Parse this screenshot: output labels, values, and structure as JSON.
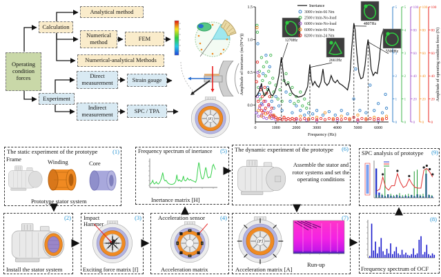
{
  "colors": {
    "accent_number": "#1d8fd1",
    "calc_box_fill": "#faeccb",
    "root_box_fill": "#c9d8a8",
    "experiment_box_fill": "#d9eaf3",
    "winding_orange": "#f08a22",
    "core_lavender": "#b4b4e0"
  },
  "flowchart": {
    "root": "Operating condition forces",
    "calculation": "Calculation",
    "analytical": "Analytical method",
    "numerical": "Numerical method",
    "fem": "FEM",
    "numerical_analytical": "Numerical-analytical Methods",
    "experiment": "Experiment",
    "direct": "Direct measurement",
    "strain_gauge": "Strain gauge",
    "indirect": "Indirect measurement",
    "spc_tpa": "SPC / TPA",
    "motor_center_label": "[F]"
  },
  "process": {
    "box1": {
      "num": "(1)",
      "title": "The static experiment of the prototype",
      "frame": "Frame",
      "winding": "Winding",
      "core": "Core",
      "caption": "Prototype stator system"
    },
    "box2": {
      "num": "(2)",
      "caption": "Install the stator system"
    },
    "box3": {
      "num": "(3)",
      "label": "Impact Hammer",
      "caption": "Exciting force matrix [f]"
    },
    "box4": {
      "num": "(4)",
      "title": "Acceleration sensor",
      "caption": "Acceleration matrix"
    },
    "box5": {
      "num": "(5)",
      "title": "Frequency spectrum of inertance",
      "caption": "Inertance matrix [H]"
    },
    "box6": {
      "num": "(6)",
      "title": "The dynamic experiment of the prototype",
      "text": "Assemble the stator and rotor systems and set the operating conditions"
    },
    "box7": {
      "num": "(7)",
      "caption": "Acceleration matrix [A]",
      "runup": "Run-up",
      "center_label": "[F]"
    },
    "box8": {
      "num": "(8)",
      "caption": "Frequency spectrum of OCF"
    },
    "box9": {
      "num": "(9)",
      "title": "SPC analysis of prototype"
    }
  },
  "chart_data": {
    "type": "line+scatter",
    "title": "",
    "xlabel": "Frequency (Hz)",
    "ylabel": "Amplitude of inertance (m/(N*s²))",
    "ylabel_right": "Amplitude of operating condition force (N)",
    "xlim": [
      0,
      6500
    ],
    "xticks": [
      0,
      1000,
      2000,
      3000,
      4000,
      5000,
      6000
    ],
    "yticks_left": [
      "0.0",
      "0.5",
      "1.0",
      "1.5"
    ],
    "y_left_range": [
      -0.26,
      1.5
    ],
    "grid": false,
    "legend_position": "top-inside",
    "right_axes": [
      {
        "color": "#2f7ec7",
        "max": 5,
        "ticks": [
          0,
          1,
          2,
          3,
          4,
          5
        ]
      },
      {
        "color": "#3cb44a",
        "max": 5,
        "ticks": [
          0,
          1,
          2,
          3,
          4,
          5
        ]
      },
      {
        "color": "#a050c8",
        "max": 100,
        "ticks": [
          0,
          20,
          40,
          60,
          80,
          100
        ]
      },
      {
        "color": "#f59120",
        "max": 100,
        "ticks": [
          0,
          20,
          40,
          60,
          80,
          100
        ]
      },
      {
        "color": "#e8251f",
        "max": 100,
        "ticks": [
          0,
          20,
          40,
          60,
          80,
          100
        ]
      }
    ],
    "annotations": [
      {
        "label": "1270Hz",
        "freq": 1270,
        "peak": 0.73
      },
      {
        "label": "2661Hz",
        "freq": 2661,
        "peak": 0.62
      },
      {
        "label": "4807Hz",
        "freq": 4807,
        "peak": 1.25
      },
      {
        "label": "5500Hz",
        "freq": 5500,
        "peak": 1.0
      }
    ],
    "series": [
      {
        "name": "Inertance",
        "type": "line",
        "color": "#111111",
        "axis": "left",
        "points": [
          [
            0,
            0.12
          ],
          [
            100,
            0.16
          ],
          [
            200,
            0.22
          ],
          [
            300,
            0.33
          ],
          [
            350,
            0.22
          ],
          [
            450,
            0.14
          ],
          [
            550,
            0.18
          ],
          [
            650,
            0.25
          ],
          [
            750,
            0.16
          ],
          [
            850,
            0.14
          ],
          [
            950,
            0.2
          ],
          [
            1050,
            0.3
          ],
          [
            1150,
            0.45
          ],
          [
            1270,
            0.73
          ],
          [
            1320,
            0.6
          ],
          [
            1400,
            0.38
          ],
          [
            1500,
            0.3
          ],
          [
            1600,
            0.33
          ],
          [
            1700,
            0.25
          ],
          [
            1800,
            0.18
          ],
          [
            1950,
            0.14
          ],
          [
            2100,
            0.12
          ],
          [
            2250,
            0.13
          ],
          [
            2400,
            0.16
          ],
          [
            2550,
            0.28
          ],
          [
            2661,
            0.62
          ],
          [
            2720,
            0.4
          ],
          [
            2800,
            0.3
          ],
          [
            2900,
            0.36
          ],
          [
            3000,
            0.3
          ],
          [
            3100,
            0.27
          ],
          [
            3200,
            0.35
          ],
          [
            3300,
            0.55
          ],
          [
            3380,
            0.35
          ],
          [
            3500,
            0.3
          ],
          [
            3600,
            0.34
          ],
          [
            3700,
            0.45
          ],
          [
            3800,
            0.37
          ],
          [
            3900,
            0.34
          ],
          [
            4000,
            0.38
          ],
          [
            4100,
            0.33
          ],
          [
            4250,
            0.3
          ],
          [
            4400,
            0.26
          ],
          [
            4500,
            0.23
          ],
          [
            4600,
            0.38
          ],
          [
            4700,
            0.85
          ],
          [
            4807,
            1.25
          ],
          [
            4870,
            1.15
          ],
          [
            4950,
            0.8
          ],
          [
            5050,
            0.5
          ],
          [
            5150,
            0.4
          ],
          [
            5250,
            0.42
          ],
          [
            5350,
            0.6
          ],
          [
            5450,
            0.9
          ],
          [
            5500,
            1.0
          ],
          [
            5570,
            0.85
          ],
          [
            5650,
            0.55
          ],
          [
            5750,
            0.45
          ],
          [
            5850,
            0.5
          ],
          [
            5950,
            0.48
          ],
          [
            6050,
            0.7
          ],
          [
            6150,
            1.05
          ],
          [
            6250,
            1.15
          ],
          [
            6350,
            1.0
          ],
          [
            6450,
            0.88
          ]
        ]
      },
      {
        "name": "3000 r/min-66 Nm",
        "type": "scatter",
        "color": "#2f7ec7",
        "axis_max": 5,
        "points": [
          [
            60,
            0.4
          ],
          [
            120,
            3.4
          ],
          [
            200,
            1.2
          ],
          [
            300,
            0.8
          ],
          [
            380,
            2.1
          ],
          [
            450,
            0.5
          ],
          [
            520,
            2.9
          ],
          [
            600,
            1.5
          ],
          [
            700,
            2.4
          ],
          [
            800,
            0.9
          ],
          [
            900,
            0.6
          ],
          [
            1000,
            1.1
          ],
          [
            1150,
            0.7
          ],
          [
            1300,
            0.5
          ],
          [
            1500,
            1.3
          ],
          [
            1700,
            0.9
          ],
          [
            1800,
            0.4
          ],
          [
            2000,
            0.7
          ],
          [
            2200,
            0.5
          ],
          [
            2400,
            0.3
          ],
          [
            2600,
            0.4
          ],
          [
            2800,
            0.35
          ],
          [
            3000,
            0.5
          ],
          [
            3300,
            0.3
          ],
          [
            3600,
            0.45
          ],
          [
            3900,
            0.3
          ],
          [
            4200,
            0.5
          ],
          [
            4500,
            0.35
          ],
          [
            4800,
            1.0
          ],
          [
            4900,
            2.3
          ],
          [
            5100,
            0.5
          ],
          [
            5400,
            0.4
          ],
          [
            5600,
            1.6
          ],
          [
            5800,
            0.5
          ],
          [
            6000,
            0.8
          ],
          [
            6200,
            0.4
          ],
          [
            6350,
            1.2
          ],
          [
            6400,
            0.6
          ]
        ]
      },
      {
        "name": "2500 r/min-No-load",
        "type": "scatter",
        "color": "#3cb44a",
        "axis_max": 5,
        "points": [
          [
            80,
            4.2
          ],
          [
            100,
            3.9
          ],
          [
            150,
            1.5
          ],
          [
            200,
            2.2
          ],
          [
            250,
            1.0
          ],
          [
            300,
            2.8
          ],
          [
            350,
            1.8
          ],
          [
            400,
            2.4
          ],
          [
            450,
            1.2
          ],
          [
            500,
            2.0
          ],
          [
            550,
            2.6
          ],
          [
            600,
            1.4
          ],
          [
            650,
            2.2
          ],
          [
            700,
            1.7
          ],
          [
            750,
            2.9
          ],
          [
            800,
            1.1
          ],
          [
            850,
            1.9
          ],
          [
            900,
            1.3
          ],
          [
            1000,
            1.6
          ],
          [
            1100,
            1.0
          ],
          [
            1200,
            1.4
          ],
          [
            1300,
            0.9
          ],
          [
            1400,
            1.8
          ],
          [
            1500,
            2.1
          ],
          [
            1600,
            1.7
          ],
          [
            1700,
            1.2
          ],
          [
            1800,
            1.5
          ],
          [
            1900,
            0.8
          ],
          [
            2000,
            1.1
          ],
          [
            2100,
            0.9
          ],
          [
            2200,
            1.3
          ],
          [
            2300,
            0.7
          ],
          [
            2400,
            1.0
          ],
          [
            2500,
            0.6
          ],
          [
            2600,
            0.8
          ]
        ]
      },
      {
        "name": "6000 r/min-No-load",
        "type": "scatter",
        "color": "#a050c8",
        "axis_max": 100,
        "points": [
          [
            50,
            8
          ],
          [
            100,
            22
          ],
          [
            120,
            43
          ],
          [
            150,
            5
          ],
          [
            200,
            12
          ],
          [
            250,
            30
          ],
          [
            300,
            6
          ],
          [
            350,
            15
          ],
          [
            400,
            4
          ],
          [
            450,
            10
          ],
          [
            500,
            18
          ],
          [
            550,
            3
          ],
          [
            600,
            8
          ],
          [
            650,
            14
          ],
          [
            700,
            5
          ],
          [
            750,
            9
          ],
          [
            800,
            3
          ],
          [
            850,
            6
          ],
          [
            900,
            4
          ],
          [
            1000,
            2
          ],
          [
            1200,
            3
          ],
          [
            1500,
            2
          ],
          [
            2000,
            2
          ],
          [
            2500,
            1.5
          ],
          [
            3000,
            1
          ],
          [
            4000,
            1.5
          ],
          [
            5000,
            1
          ],
          [
            6000,
            1.5
          ]
        ]
      },
      {
        "name": "6000 r/min-66 Nm",
        "type": "scatter",
        "color": "#f59120",
        "axis_max": 100,
        "points": [
          [
            80,
            82
          ],
          [
            150,
            10
          ],
          [
            300,
            5
          ],
          [
            500,
            7
          ],
          [
            700,
            4
          ],
          [
            900,
            6
          ],
          [
            1100,
            3
          ],
          [
            1400,
            4
          ],
          [
            1800,
            3
          ],
          [
            2200,
            5
          ],
          [
            2600,
            3
          ],
          [
            3000,
            4
          ],
          [
            3400,
            8
          ],
          [
            3800,
            3
          ],
          [
            4200,
            5
          ],
          [
            4600,
            3
          ],
          [
            5000,
            6
          ],
          [
            5400,
            3
          ],
          [
            5800,
            4
          ],
          [
            6200,
            3
          ],
          [
            6400,
            5
          ]
        ]
      },
      {
        "name": "8200 r/min-24 Nm",
        "type": "scatter",
        "color": "#e8251f",
        "axis_max": 100,
        "points": [
          [
            60,
            35
          ],
          [
            100,
            52
          ],
          [
            140,
            18
          ],
          [
            180,
            40
          ],
          [
            220,
            14
          ],
          [
            260,
            28
          ],
          [
            300,
            10
          ],
          [
            340,
            22
          ],
          [
            380,
            8
          ],
          [
            420,
            18
          ],
          [
            460,
            30
          ],
          [
            500,
            12
          ],
          [
            550,
            25
          ],
          [
            600,
            8
          ],
          [
            650,
            15
          ],
          [
            700,
            22
          ],
          [
            750,
            6
          ],
          [
            800,
            12
          ],
          [
            900,
            5
          ],
          [
            1000,
            4
          ],
          [
            1100,
            2
          ],
          [
            1200,
            3
          ],
          [
            1300,
            2
          ],
          [
            1400,
            4
          ],
          [
            1500,
            2
          ],
          [
            1600,
            3
          ],
          [
            1700,
            2
          ],
          [
            1800,
            3
          ],
          [
            1900,
            2
          ],
          [
            2000,
            3
          ],
          [
            2200,
            2
          ],
          [
            2400,
            3
          ],
          [
            2600,
            2
          ],
          [
            2800,
            3
          ],
          [
            3000,
            2
          ],
          [
            3200,
            3
          ],
          [
            3400,
            2
          ],
          [
            3600,
            3
          ],
          [
            3800,
            2
          ],
          [
            4000,
            3
          ],
          [
            4200,
            2
          ],
          [
            4400,
            3
          ],
          [
            4600,
            2
          ],
          [
            4800,
            4
          ],
          [
            5000,
            2
          ],
          [
            5200,
            3
          ],
          [
            5400,
            2
          ],
          [
            5600,
            3
          ],
          [
            5800,
            2
          ],
          [
            6000,
            3
          ],
          [
            6200,
            2
          ],
          [
            6400,
            3
          ]
        ]
      }
    ]
  },
  "mini_charts": {
    "ocf_spectrum": {
      "type": "bar",
      "color": "#1a1acc",
      "values": [
        5,
        95,
        20,
        45,
        12,
        30,
        55,
        18,
        8,
        25,
        12,
        40,
        10,
        18,
        30,
        12,
        8,
        22,
        9,
        14,
        8,
        6,
        10,
        26,
        8,
        12,
        50,
        60,
        9,
        16,
        36,
        10,
        6,
        12,
        8
      ]
    },
    "spc": {
      "blue": [
        85,
        15,
        8,
        5,
        10,
        6,
        4,
        8,
        5,
        3,
        6,
        4,
        8,
        5,
        10,
        6,
        4,
        70,
        8,
        5
      ],
      "red": [
        20,
        25,
        60,
        30,
        22,
        35,
        35,
        70,
        45,
        30,
        35,
        55,
        40,
        30,
        28,
        28,
        80,
        85,
        75,
        60
      ],
      "green": [
        10,
        8,
        12,
        90,
        10,
        12,
        8,
        10,
        14,
        8,
        10,
        12,
        9,
        80,
        85,
        10,
        12,
        88,
        10,
        8
      ]
    }
  }
}
